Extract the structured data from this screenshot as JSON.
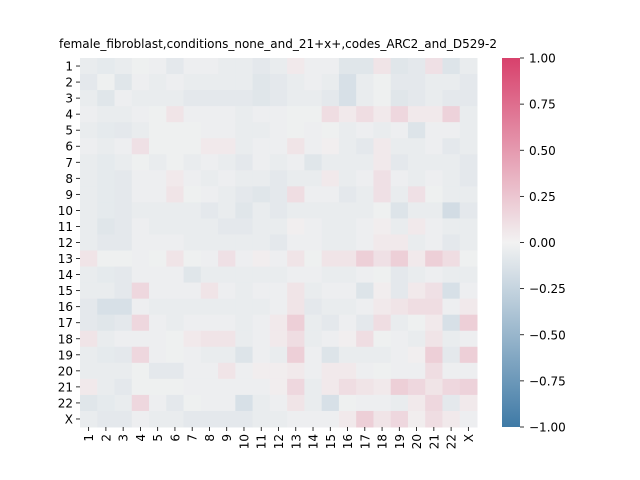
{
  "chart_data": {
    "type": "heatmap",
    "title": "female_fibroblast,conditions_none_and_21+x+,codes_ARC2_and_D529-2",
    "xlabel": "",
    "ylabel": "",
    "categories": [
      "1",
      "2",
      "3",
      "4",
      "5",
      "6",
      "7",
      "8",
      "9",
      "10",
      "11",
      "12",
      "13",
      "14",
      "15",
      "16",
      "17",
      "18",
      "19",
      "20",
      "21",
      "22",
      "X"
    ],
    "colorbar": {
      "min": -1.0,
      "max": 1.0,
      "ticks": [
        "1.00",
        "0.75",
        "0.50",
        "0.25",
        "0.00",
        "−0.25",
        "−0.50",
        "−0.75",
        "−1.00"
      ],
      "tick_values": [
        1.0,
        0.75,
        0.5,
        0.25,
        0.0,
        -0.25,
        -0.5,
        -0.75,
        -1.0
      ],
      "colors": {
        "negative": "#3f7aa6",
        "mid": "#f2f2f2",
        "positive": "#d8416c"
      }
    },
    "values": [
      [
        -0.05,
        -0.07,
        -0.05,
        -0.02,
        -0.03,
        -0.08,
        -0.03,
        -0.03,
        -0.05,
        -0.05,
        -0.08,
        -0.05,
        0.05,
        -0.03,
        -0.03,
        -0.1,
        -0.1,
        0.08,
        -0.1,
        -0.08,
        0.1,
        -0.12,
        -0.05
      ],
      [
        -0.08,
        -0.02,
        -0.1,
        -0.03,
        -0.05,
        -0.03,
        -0.05,
        -0.05,
        -0.05,
        -0.05,
        -0.1,
        -0.08,
        -0.05,
        -0.03,
        -0.05,
        -0.15,
        -0.05,
        -0.02,
        -0.08,
        -0.08,
        -0.05,
        -0.05,
        -0.08
      ],
      [
        -0.05,
        -0.1,
        -0.03,
        -0.05,
        -0.05,
        -0.05,
        -0.08,
        -0.08,
        -0.08,
        -0.08,
        -0.1,
        -0.08,
        -0.05,
        -0.05,
        -0.08,
        -0.15,
        -0.05,
        -0.02,
        -0.1,
        -0.08,
        -0.05,
        -0.08,
        -0.08
      ],
      [
        -0.03,
        -0.05,
        -0.05,
        -0.03,
        -0.02,
        0.08,
        -0.03,
        -0.03,
        -0.03,
        -0.05,
        -0.03,
        -0.03,
        -0.02,
        -0.02,
        0.12,
        0.05,
        0.12,
        0.05,
        0.15,
        0.05,
        0.05,
        0.18,
        -0.05
      ],
      [
        -0.05,
        -0.07,
        -0.08,
        -0.05,
        -0.02,
        -0.02,
        -0.02,
        -0.03,
        -0.03,
        -0.05,
        -0.05,
        -0.03,
        -0.02,
        -0.03,
        -0.02,
        -0.05,
        -0.03,
        -0.05,
        -0.03,
        -0.12,
        -0.03,
        -0.03,
        -0.05
      ],
      [
        -0.03,
        -0.05,
        -0.03,
        0.1,
        -0.02,
        -0.02,
        -0.02,
        0.05,
        0.05,
        -0.05,
        -0.03,
        -0.03,
        0.08,
        -0.03,
        0.02,
        -0.05,
        -0.08,
        0.05,
        -0.05,
        -0.05,
        -0.03,
        -0.08,
        -0.05
      ],
      [
        -0.05,
        -0.07,
        -0.05,
        -0.02,
        -0.05,
        -0.02,
        -0.05,
        -0.03,
        -0.05,
        -0.08,
        -0.03,
        -0.05,
        -0.03,
        -0.1,
        -0.05,
        -0.05,
        -0.05,
        0.05,
        -0.08,
        -0.05,
        -0.05,
        -0.05,
        -0.08
      ],
      [
        -0.05,
        -0.07,
        -0.08,
        -0.03,
        -0.03,
        0.05,
        -0.03,
        -0.05,
        -0.03,
        -0.05,
        -0.05,
        -0.08,
        -0.05,
        -0.05,
        0.05,
        -0.05,
        -0.03,
        0.1,
        -0.03,
        -0.05,
        -0.03,
        -0.05,
        -0.08
      ],
      [
        -0.05,
        -0.07,
        -0.08,
        -0.03,
        -0.03,
        0.08,
        -0.02,
        -0.03,
        -0.05,
        -0.08,
        -0.1,
        -0.08,
        0.12,
        -0.03,
        -0.03,
        -0.08,
        -0.05,
        0.1,
        -0.05,
        0.1,
        -0.02,
        -0.05,
        -0.05
      ],
      [
        -0.05,
        -0.07,
        -0.08,
        -0.05,
        -0.05,
        -0.05,
        -0.05,
        -0.08,
        -0.05,
        -0.1,
        -0.05,
        -0.08,
        -0.05,
        -0.05,
        -0.05,
        -0.05,
        -0.05,
        -0.02,
        -0.12,
        -0.05,
        -0.05,
        -0.18,
        -0.08
      ],
      [
        -0.05,
        -0.1,
        -0.08,
        -0.03,
        -0.05,
        -0.05,
        -0.05,
        -0.05,
        -0.08,
        -0.08,
        -0.05,
        -0.05,
        0.02,
        -0.03,
        -0.05,
        -0.05,
        -0.03,
        0.03,
        -0.05,
        0.05,
        -0.03,
        -0.05,
        -0.05
      ],
      [
        -0.05,
        -0.08,
        -0.08,
        -0.03,
        -0.03,
        -0.03,
        -0.05,
        -0.05,
        -0.05,
        -0.05,
        -0.05,
        -0.08,
        -0.03,
        -0.03,
        -0.05,
        -0.05,
        -0.03,
        0.05,
        0.05,
        -0.05,
        -0.03,
        -0.08,
        -0.05
      ],
      [
        0.08,
        -0.02,
        -0.02,
        -0.03,
        -0.02,
        0.08,
        -0.02,
        -0.03,
        0.1,
        -0.03,
        0.03,
        -0.03,
        0.08,
        -0.02,
        0.08,
        0.08,
        0.2,
        0.1,
        0.2,
        0.05,
        0.2,
        0.12,
        -0.02
      ],
      [
        -0.05,
        -0.07,
        -0.08,
        -0.03,
        -0.03,
        -0.03,
        -0.1,
        -0.05,
        -0.05,
        -0.05,
        -0.05,
        -0.05,
        -0.03,
        -0.03,
        -0.05,
        -0.05,
        -0.03,
        -0.02,
        -0.08,
        -0.05,
        -0.03,
        -0.05,
        -0.05
      ],
      [
        -0.05,
        -0.05,
        -0.08,
        0.15,
        -0.03,
        -0.03,
        -0.03,
        0.08,
        -0.03,
        -0.05,
        -0.03,
        -0.03,
        0.08,
        -0.05,
        -0.03,
        -0.03,
        -0.12,
        0.03,
        -0.08,
        0.05,
        0.1,
        -0.15,
        -0.03
      ],
      [
        -0.08,
        -0.15,
        -0.15,
        -0.03,
        -0.05,
        -0.05,
        -0.05,
        -0.05,
        -0.05,
        -0.05,
        -0.05,
        -0.03,
        0.08,
        -0.08,
        -0.05,
        -0.05,
        -0.03,
        0.05,
        0.08,
        0.12,
        0.12,
        -0.03,
        0.05
      ],
      [
        -0.08,
        -0.1,
        -0.08,
        0.15,
        -0.03,
        -0.05,
        -0.03,
        -0.03,
        -0.03,
        -0.05,
        -0.03,
        0.05,
        0.2,
        -0.05,
        -0.08,
        -0.03,
        -0.08,
        0.12,
        -0.05,
        -0.02,
        0.05,
        -0.15,
        0.2
      ],
      [
        0.08,
        -0.05,
        -0.03,
        -0.03,
        -0.03,
        -0.02,
        0.05,
        0.08,
        0.08,
        -0.05,
        -0.03,
        0.05,
        0.12,
        -0.05,
        -0.03,
        0.02,
        0.12,
        -0.02,
        -0.03,
        -0.05,
        0.08,
        -0.05,
        -0.03
      ],
      [
        -0.05,
        -0.07,
        -0.08,
        0.15,
        -0.03,
        -0.02,
        -0.03,
        -0.05,
        -0.05,
        -0.12,
        -0.03,
        -0.05,
        0.2,
        -0.03,
        -0.12,
        -0.05,
        -0.05,
        -0.05,
        -0.03,
        0.02,
        0.2,
        -0.08,
        0.2
      ],
      [
        -0.05,
        -0.05,
        -0.05,
        -0.02,
        -0.08,
        -0.08,
        -0.03,
        -0.03,
        0.08,
        -0.03,
        0.03,
        0.03,
        0.05,
        -0.03,
        0.05,
        0.05,
        -0.03,
        -0.02,
        -0.03,
        -0.03,
        0.12,
        -0.03,
        -0.03
      ],
      [
        0.05,
        -0.05,
        -0.08,
        -0.02,
        -0.02,
        -0.02,
        -0.03,
        -0.03,
        -0.03,
        -0.03,
        -0.03,
        0.03,
        0.15,
        -0.05,
        0.05,
        0.12,
        0.08,
        0.05,
        0.2,
        0.15,
        0.08,
        0.15,
        0.18
      ],
      [
        -0.1,
        -0.07,
        -0.05,
        0.15,
        -0.03,
        -0.08,
        -0.02,
        -0.03,
        -0.03,
        -0.15,
        -0.05,
        -0.03,
        0.08,
        -0.05,
        -0.15,
        -0.02,
        -0.03,
        -0.03,
        -0.05,
        0.05,
        0.15,
        -0.08,
        0.05
      ],
      [
        -0.05,
        -0.08,
        -0.08,
        -0.03,
        -0.05,
        -0.05,
        -0.08,
        -0.08,
        -0.08,
        -0.08,
        -0.05,
        -0.05,
        -0.03,
        -0.03,
        -0.03,
        0.05,
        0.2,
        0.08,
        0.15,
        0.03,
        0.12,
        0.05,
        -0.03
      ]
    ]
  }
}
